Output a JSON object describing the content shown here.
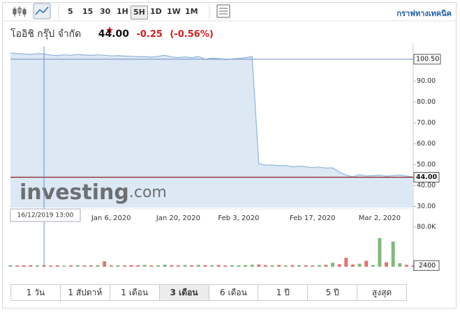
{
  "toolbar": {
    "intervals": [
      "5",
      "15",
      "30",
      "1H",
      "5H",
      "1D",
      "1W",
      "1M"
    ],
    "active_interval": 4,
    "technical_link": "กราฟทางเทคนิค"
  },
  "header": {
    "name": "โออิชิ กรุ๊ป จำกัด",
    "price": "44.00",
    "change": "-0.25",
    "change_percent": "(-0.56%)"
  },
  "chart_data": {
    "type": "area",
    "color": "#8eb5da",
    "fill": "#dce8f4",
    "categories": [
      null,
      null,
      null,
      null,
      null,
      null,
      null,
      null,
      null,
      null,
      null,
      null,
      null,
      null,
      null,
      "Jan 6, 2020",
      null,
      null,
      null,
      null,
      null,
      null,
      null,
      null,
      null,
      "Jan 20, 2020",
      null,
      null,
      null,
      null,
      null,
      null,
      null,
      null,
      "Feb 3, 2020",
      null,
      null,
      null,
      null,
      null,
      null,
      null,
      null,
      null,
      null,
      "Feb 17, 2020",
      null,
      null,
      null,
      null,
      null,
      null,
      null,
      null,
      null,
      "Mar 2, 2020",
      null,
      null,
      null,
      null,
      null
    ],
    "values": [
      103.5,
      103.2,
      103,
      102.8,
      103.2,
      103,
      102.5,
      102.2,
      102.6,
      102.4,
      102.8,
      102.5,
      102.3,
      102.6,
      102.4,
      102.1,
      102.2,
      102,
      101.9,
      101.7,
      101.8,
      101.5,
      101.9,
      102.4,
      101.6,
      101.3,
      101.6,
      101.2,
      101.8,
      100.5,
      101,
      100.8,
      100.3,
      100.6,
      100.9,
      101.2,
      101.8,
      50.5,
      49.8,
      49.9,
      49.5,
      49.6,
      49,
      49.3,
      49,
      48.6,
      48.9,
      48.4,
      48.5,
      46.5,
      45,
      44.2,
      45.2,
      44.6,
      44.8,
      45,
      44.5,
      44.8,
      45.1,
      44.6,
      44
    ],
    "ylim": [
      29.5,
      106.5
    ],
    "yticks": [
      {
        "value": 30,
        "label": "30.00"
      },
      {
        "value": 40,
        "label": "40.00"
      },
      {
        "value": 50,
        "label": "50.00"
      },
      {
        "value": 60,
        "label": "60.00"
      },
      {
        "value": 70,
        "label": "70.00"
      },
      {
        "value": 80,
        "label": "80.00"
      },
      {
        "value": 90,
        "label": "90.00"
      }
    ],
    "grid": false,
    "last": {
      "value": 44,
      "label": "44.00",
      "color": "#8b1a1a"
    },
    "crosshair": {
      "index": 5,
      "x_label": "16/12/2019 13:00",
      "y": {
        "value": 100.5,
        "label": "100.50"
      },
      "color": "#6c8ebf"
    },
    "watermark": {
      "brand": "investing",
      "suffix": ".com"
    },
    "volume": {
      "values": [
        3000,
        2500,
        2800,
        3200,
        2600,
        3000,
        2400,
        2800,
        2200,
        2600,
        3000,
        2500,
        2700,
        3100,
        11000,
        2600,
        2900,
        2400,
        3300,
        2800,
        3600,
        2500,
        2900,
        4200,
        3000,
        2600,
        3400,
        2800,
        3900,
        3200,
        2700,
        3500,
        2600,
        3000,
        2800,
        3300,
        4100,
        4500,
        3200,
        2800,
        3600,
        2700,
        3300,
        2900,
        3100,
        2600,
        3400,
        3800,
        8000,
        5000,
        18000,
        4500,
        6000,
        12000,
        3500,
        57600,
        9000,
        50500,
        7000,
        4000,
        2400
      ],
      "ylim": [
        0,
        91000
      ],
      "yticks": [
        {
          "value": 80000,
          "label": "80.0K"
        }
      ],
      "last": 2400,
      "up_color": "#5fa85a",
      "down_color": "#d9534f"
    }
  },
  "ranges": {
    "items": [
      "1 วัน",
      "1 สัปดาห์",
      "1 เดือน",
      "3 เดือน",
      "6 เดือน",
      "1 ปี",
      "5 ปี",
      "สูงสุด"
    ],
    "active": 3
  }
}
